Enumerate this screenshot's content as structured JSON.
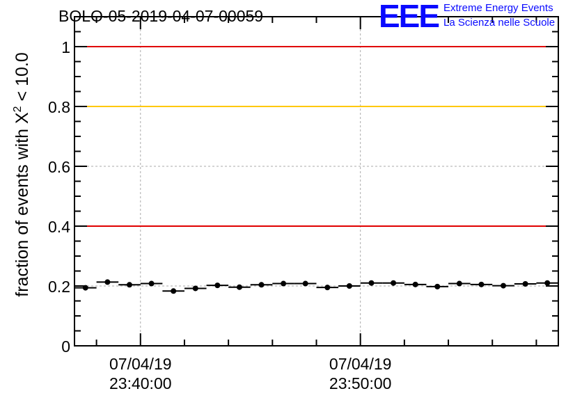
{
  "title": "BOLO-05-2019-04-07-00059",
  "logo": {
    "mark": "EEE",
    "line1": "Extreme Energy Events",
    "line2": "La Scienza nelle Scuole",
    "color": "#0a0aff"
  },
  "chart_data": {
    "type": "scatter",
    "title": "BOLO-05-2019-04-07-00059",
    "ylabel_main": "fraction of events with X",
    "ylabel_sup": "2",
    "ylabel_tail": " < 10.0",
    "ylim": [
      0,
      1.1
    ],
    "yticks": [
      0,
      0.2,
      0.4,
      0.6,
      0.8,
      1
    ],
    "ytick_labels": [
      "0",
      "0.2",
      "0.4",
      "0.6",
      "0.8",
      "1"
    ],
    "xlim": [
      "23:37:00",
      "23:59:00"
    ],
    "xticks": [
      {
        "time": "23:40:00",
        "date": "07/04/19"
      },
      {
        "time": "23:50:00",
        "date": "07/04/19"
      }
    ],
    "x_minor_step_min": 2,
    "grid": true,
    "reference_lines": [
      {
        "y": 1.0,
        "color": "#e00000"
      },
      {
        "y": 0.8,
        "color": "#ffc800"
      },
      {
        "y": 0.4,
        "color": "#e00000"
      }
    ],
    "bin_width_min": 1.0,
    "series": [
      {
        "x": [
          "23:37:30",
          "23:38:30",
          "23:39:30",
          "23:40:30",
          "23:41:30",
          "23:42:30",
          "23:43:30",
          "23:44:30",
          "23:45:30",
          "23:46:30",
          "23:47:30",
          "23:48:30",
          "23:49:30",
          "23:50:30",
          "23:51:30",
          "23:52:30",
          "23:53:30",
          "23:54:30",
          "23:55:30",
          "23:56:30",
          "23:57:30",
          "23:58:30"
        ],
        "y": [
          0.194,
          0.213,
          0.204,
          0.208,
          0.183,
          0.192,
          0.202,
          0.196,
          0.204,
          0.208,
          0.208,
          0.195,
          0.2,
          0.21,
          0.21,
          0.205,
          0.198,
          0.208,
          0.205,
          0.201,
          0.207,
          0.21
        ]
      }
    ]
  }
}
